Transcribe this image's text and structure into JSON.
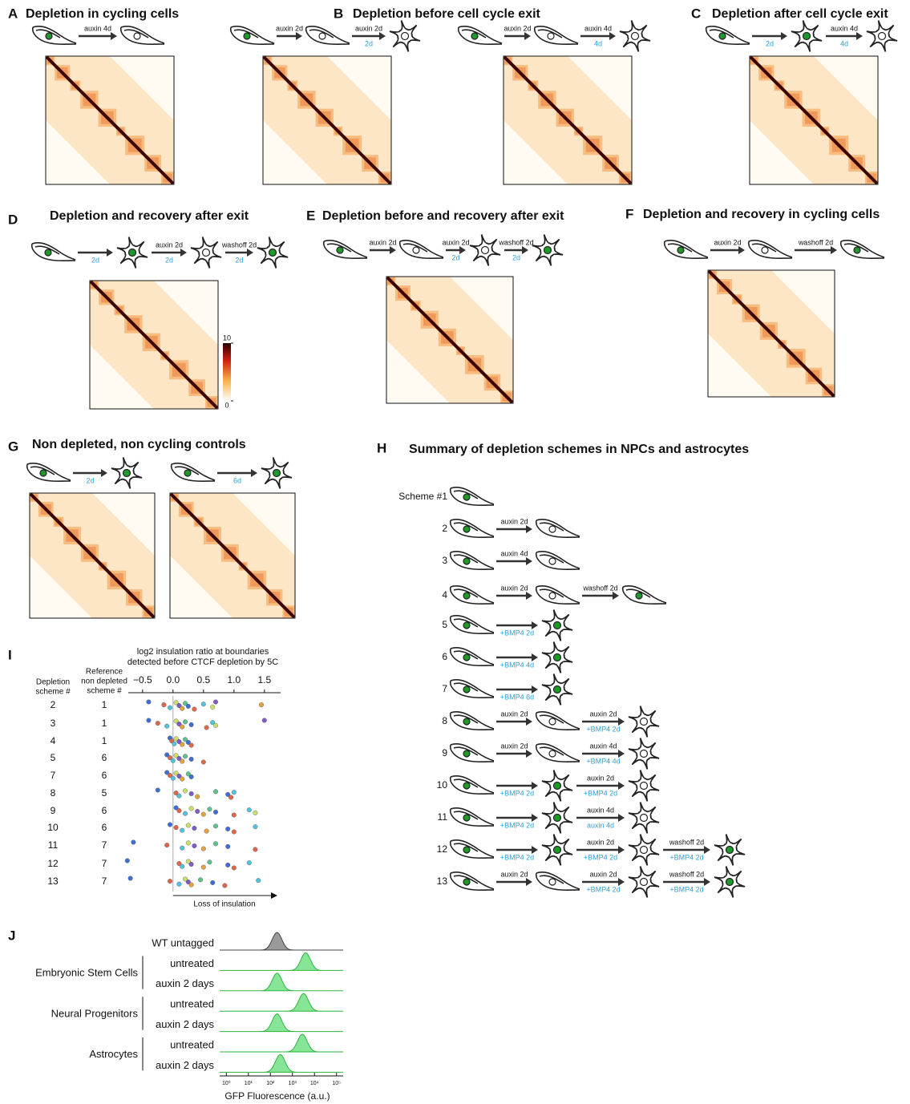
{
  "panels": {
    "A": {
      "letter": "A",
      "title": "Depletion in cycling cells",
      "schemes": [
        {
          "arrows": [
            {
              "top": "auxin 4d"
            }
          ]
        }
      ]
    },
    "B": {
      "letter": "B",
      "title": "Depletion before cell cycle exit",
      "schemes": [
        {
          "arrows": [
            {
              "top": "auxin 2d"
            },
            {
              "top": "auxin 2d",
              "bottom": "2d"
            }
          ]
        },
        {
          "arrows": [
            {
              "top": "auxin 2d"
            },
            {
              "top": "auxin 4d",
              "bottom": "4d"
            }
          ]
        }
      ]
    },
    "C": {
      "letter": "C",
      "title": "Depletion after cell cycle exit",
      "schemes": [
        {
          "arrows": [
            {
              "bottom": "2d"
            },
            {
              "top": "auxin 4d",
              "bottom": "4d"
            }
          ]
        }
      ]
    },
    "D": {
      "letter": "D",
      "title": "Depletion and recovery after exit",
      "schemes": [
        {
          "arrows": [
            {
              "bottom": "2d"
            },
            {
              "top": "auxin 2d",
              "bottom": "2d"
            },
            {
              "top": "washoff 2d",
              "bottom": "2d"
            }
          ]
        }
      ],
      "colorbar": {
        "lim": [
          0,
          10
        ],
        "ticks": [
          10,
          0
        ]
      }
    },
    "E": {
      "letter": "E",
      "title": "Depletion before and recovery after exit",
      "schemes": [
        {
          "arrows": [
            {
              "top": "auxin 2d"
            },
            {
              "top": "auxin 2d",
              "bottom": "2d"
            },
            {
              "top": "washoff 2d",
              "bottom": "2d"
            }
          ]
        }
      ]
    },
    "F": {
      "letter": "F",
      "title": "Depletion and recovery in cycling cells",
      "schemes": [
        {
          "arrows": [
            {
              "top": "auxin 2d"
            },
            {
              "top": "washoff 2d"
            }
          ]
        }
      ]
    },
    "G": {
      "letter": "G",
      "title": "Non depleted, non cycling controls",
      "schemes": [
        {
          "arrows": [
            {
              "bottom": "2d"
            }
          ]
        },
        {
          "arrows": [
            {
              "bottom": "6d"
            }
          ]
        }
      ]
    },
    "H": {
      "letter": "H",
      "title": "Summary of depletion schemes in NPCs and astrocytes",
      "rows": [
        {
          "label": "Scheme #1"
        },
        {
          "label": "2",
          "arrows": [
            {
              "top": "auxin 2d"
            }
          ]
        },
        {
          "label": "3",
          "arrows": [
            {
              "top": "auxin 4d"
            }
          ]
        },
        {
          "label": "4",
          "arrows": [
            {
              "top": "auxin 2d"
            },
            {
              "top": "washoff 2d"
            }
          ]
        },
        {
          "label": "5",
          "arrows": [
            {
              "bottom": "+BMP4 2d"
            }
          ]
        },
        {
          "label": "6",
          "arrows": [
            {
              "bottom": "+BMP4 4d"
            }
          ]
        },
        {
          "label": "7",
          "arrows": [
            {
              "bottom": "+BMP4 6d"
            }
          ]
        },
        {
          "label": "8",
          "arrows": [
            {
              "top": "auxin 2d"
            },
            {
              "top": "auxin 2d",
              "bottom": "+BMP4 2d"
            }
          ]
        },
        {
          "label": "9",
          "arrows": [
            {
              "top": "auxin 2d"
            },
            {
              "top": "auxin 4d",
              "bottom": "+BMP4 4d"
            }
          ]
        },
        {
          "label": "10",
          "arrows": [
            {
              "bottom": "+BMP4 2d"
            },
            {
              "top": "auxin 2d",
              "bottom": "+BMP4 2d"
            }
          ]
        },
        {
          "label": "11",
          "arrows": [
            {
              "bottom": "+BMP4 2d"
            },
            {
              "top": "auxin 4d",
              "bottom": "auxin 4d"
            }
          ]
        },
        {
          "label": "12",
          "arrows": [
            {
              "bottom": "+BMP4 2d"
            },
            {
              "top": "auxin 2d",
              "bottom": "+BMP4 2d"
            },
            {
              "top": "washoff 2d",
              "bottom": "+BMP4 2d"
            }
          ]
        },
        {
          "label": "13",
          "arrows": [
            {
              "top": "auxin 2d"
            },
            {
              "top": "auxin 2d",
              "bottom": "+BMP4 2d"
            },
            {
              "top": "washoff 2d",
              "bottom": "+BMP4 2d"
            }
          ]
        }
      ]
    },
    "I": {
      "letter": "I",
      "title": [
        "log2 insulation ratio at boundaries",
        "detected before CTCF depletion by 5C"
      ],
      "col_headers": [
        [
          "Depletion",
          "scheme #"
        ],
        [
          "Reference",
          "non depleted",
          "scheme #"
        ]
      ],
      "xlim": [
        -0.8,
        1.7
      ],
      "xticks": [
        {
          "value": -0.5,
          "label": "−0.5"
        },
        {
          "value": 0,
          "label": "0.0"
        },
        0.5,
        {
          "value": 1,
          "label": "1.0"
        },
        1.5
      ],
      "xlabel": "Loss of insulation",
      "colors": [
        "#3b6fd6",
        "#e0664a",
        "#4fc3e0",
        "#c9e06a",
        "#7d5bc8",
        "#e8a23c",
        "#5cc48a"
      ],
      "rows": [
        {
          "scheme": 2,
          "reference": 1,
          "values": [
            -0.4,
            -0.15,
            -0.05,
            0.05,
            0.1,
            0.15,
            0.2,
            0.25,
            0.35,
            0.5,
            0.65,
            0.7,
            1.45
          ]
        },
        {
          "scheme": 3,
          "reference": 1,
          "values": [
            -0.4,
            -0.25,
            -0.1,
            0.05,
            0.1,
            0.15,
            0.2,
            0.3,
            0.55,
            0.65,
            0.7,
            1.5
          ]
        },
        {
          "scheme": 4,
          "reference": 1,
          "values": [
            -0.05,
            -0.02,
            0.02,
            0.05,
            0.1,
            0.15,
            0.2,
            0.25,
            0.3
          ]
        },
        {
          "scheme": 5,
          "reference": 6,
          "values": [
            -0.1,
            -0.05,
            0,
            0.05,
            0.1,
            0.15,
            0.2,
            0.3,
            0.5
          ]
        },
        {
          "scheme": 7,
          "reference": 6,
          "values": [
            -0.1,
            -0.05,
            0,
            0.05,
            0.1,
            0.15,
            0.25,
            0.3
          ]
        },
        {
          "scheme": 8,
          "reference": 5,
          "values": [
            -0.25,
            0.05,
            0.1,
            0.2,
            0.3,
            0.4,
            0.7,
            0.9,
            0.95,
            1.0
          ]
        },
        {
          "scheme": 9,
          "reference": 6,
          "values": [
            0.05,
            0.1,
            0.2,
            0.3,
            0.4,
            0.5,
            0.6,
            0.7,
            1.0,
            1.25,
            1.35
          ]
        },
        {
          "scheme": 10,
          "reference": 6,
          "values": [
            -0.05,
            0.05,
            0.15,
            0.25,
            0.35,
            0.55,
            0.7,
            0.9,
            1.0,
            1.35
          ]
        },
        {
          "scheme": 11,
          "reference": 7,
          "values": [
            -0.65,
            -0.1,
            0.15,
            0.25,
            0.35,
            0.5,
            0.7,
            0.9,
            1.35
          ]
        },
        {
          "scheme": 12,
          "reference": 7,
          "values": [
            -0.75,
            0.1,
            0.15,
            0.25,
            0.3,
            0.5,
            0.6,
            0.9,
            1.0,
            1.25
          ]
        },
        {
          "scheme": 13,
          "reference": 7,
          "values": [
            -0.7,
            -0.05,
            0.1,
            0.2,
            0.25,
            0.3,
            0.45,
            0.65,
            0.85,
            1.4
          ]
        }
      ]
    },
    "J": {
      "letter": "J",
      "xlabel": "GFP Fluorescence (a.u.)",
      "log_x": true,
      "xlim": [
        0.5,
        200000
      ],
      "xticks": [
        {
          "value": 1,
          "label": "10⁰"
        },
        {
          "value": 10,
          "label": "10¹"
        },
        {
          "value": 100,
          "label": "10²"
        },
        {
          "value": 1000,
          "label": "10³"
        },
        {
          "value": 10000,
          "label": "10⁴"
        },
        {
          "value": 100000,
          "label": "10⁵"
        }
      ],
      "groups": [
        {
          "name": "Embryonic Stem Cells"
        },
        {
          "name": "Neural Progenitors"
        },
        {
          "name": "Astrocytes"
        }
      ],
      "rows": [
        {
          "label": "WT untagged",
          "peak": 200,
          "color": "#9a9a9a"
        },
        {
          "label": "untreated",
          "peak": 4000,
          "color": "#86e596"
        },
        {
          "label": "auxin 2 days",
          "peak": 200,
          "color": "#86e596"
        },
        {
          "label": "untreated",
          "peak": 3200,
          "color": "#86e596"
        },
        {
          "label": "auxin 2 days",
          "peak": 200,
          "color": "#86e596"
        },
        {
          "label": "untreated",
          "peak": 2800,
          "color": "#86e596"
        },
        {
          "label": "auxin 2 days",
          "peak": 280,
          "color": "#86e596"
        }
      ]
    }
  }
}
